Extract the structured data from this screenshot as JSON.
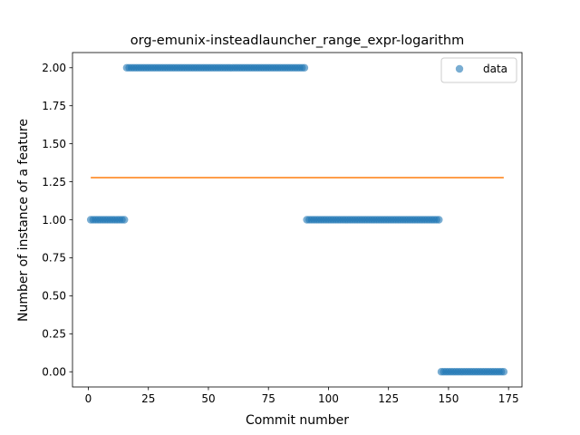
{
  "chart_data": {
    "type": "scatter",
    "title": "org-emunix-insteadlauncher_range_expr-logarithm",
    "xlabel": "Commit number",
    "ylabel": "Number of instance of a feature",
    "xlim": [
      -6.6,
      180.6
    ],
    "ylim": [
      -0.1,
      2.1
    ],
    "x_ticks": [
      0,
      25,
      50,
      75,
      100,
      125,
      150,
      175
    ],
    "y_ticks": [
      0.0,
      0.25,
      0.5,
      0.75,
      1.0,
      1.25,
      1.5,
      1.75,
      2.0
    ],
    "x_tick_labels": [
      "0",
      "25",
      "50",
      "75",
      "100",
      "125",
      "150",
      "175"
    ],
    "y_tick_labels": [
      "0.00",
      "0.25",
      "0.50",
      "0.75",
      "1.00",
      "1.25",
      "1.50",
      "1.75",
      "2.00"
    ],
    "grid": false,
    "legend": {
      "placement": "top-right",
      "entries": [
        "data"
      ]
    },
    "colors": {
      "data": "#1f77b4",
      "fit": "#ff7f0e"
    },
    "series": [
      {
        "name": "data",
        "kind": "scatter",
        "segments": [
          {
            "x_start": 1,
            "x_end": 15,
            "y": 1.0
          },
          {
            "x_start": 16,
            "x_end": 90,
            "y": 2.0
          },
          {
            "x_start": 91,
            "x_end": 146,
            "y": 1.0
          },
          {
            "x_start": 147,
            "x_end": 173,
            "y": 0.0
          }
        ]
      },
      {
        "kind": "line",
        "x": [
          1,
          173
        ],
        "y": [
          1.277,
          1.277
        ]
      }
    ]
  }
}
